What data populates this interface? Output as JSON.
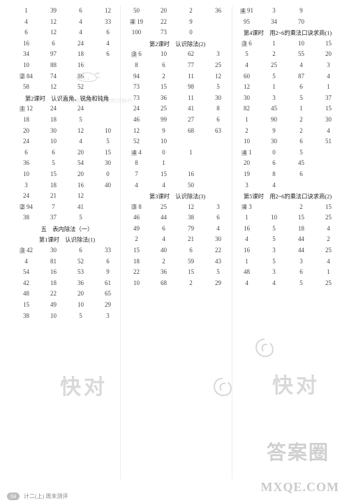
{
  "page_number": "84",
  "footer_text": "计二(上)  周末测评",
  "watermarks": {
    "kuaidui_small": "快对教材解析\n快对教材解析",
    "kuaidui_big": "快对",
    "answer": "答案圈",
    "url": "MXQE.COM"
  },
  "columns": [
    {
      "items": [
        {
          "t": "row",
          "c": [
            "1",
            "39",
            "6",
            "12"
          ]
        },
        {
          "t": "row",
          "c": [
            "4",
            "12",
            "4",
            "33"
          ]
        },
        {
          "t": "row",
          "c": [
            "6",
            "12",
            "4",
            "6"
          ]
        },
        {
          "t": "row",
          "c": [
            "16",
            "6",
            "24",
            "4"
          ]
        },
        {
          "t": "row",
          "c": [
            "34",
            "97",
            "18",
            "6"
          ]
        },
        {
          "t": "row",
          "c": [
            "10",
            "88",
            "16",
            ""
          ]
        },
        {
          "t": "row",
          "b": "2",
          "c": [
            "84",
            "74",
            "86",
            ""
          ]
        },
        {
          "t": "row",
          "c": [
            "58",
            "12",
            "52",
            ""
          ]
        },
        {
          "t": "hdr",
          "txt": "第2课时　认识直角、锐角和钝角"
        },
        {
          "t": "row",
          "b": "1",
          "c": [
            "12",
            "24",
            "24",
            ""
          ]
        },
        {
          "t": "row",
          "c": [
            "18",
            "18",
            "5",
            ""
          ]
        },
        {
          "t": "row",
          "c": [
            "20",
            "30",
            "12",
            "10"
          ]
        },
        {
          "t": "row",
          "c": [
            "24",
            "10",
            "4",
            "5"
          ]
        },
        {
          "t": "row",
          "c": [
            "6",
            "6",
            "20",
            "15"
          ]
        },
        {
          "t": "row",
          "c": [
            "36",
            "5",
            "54",
            "30"
          ]
        },
        {
          "t": "row",
          "c": [
            "10",
            "15",
            "20",
            "0"
          ]
        },
        {
          "t": "row",
          "c": [
            "3",
            "18",
            "16",
            "40"
          ]
        },
        {
          "t": "row",
          "c": [
            "24",
            "21",
            "12",
            ""
          ]
        },
        {
          "t": "row",
          "b": "2",
          "c": [
            "94",
            "7",
            "41",
            ""
          ]
        },
        {
          "t": "row",
          "c": [
            "38",
            "37",
            "5",
            ""
          ]
        },
        {
          "t": "hdr",
          "txt": "五　表内除法（一）"
        },
        {
          "t": "hdr",
          "txt": "第1课时　认识除法(1)"
        },
        {
          "t": "row",
          "b": "3",
          "c": [
            "42",
            "30",
            "6",
            "33"
          ]
        },
        {
          "t": "row",
          "c": [
            "4",
            "81",
            "52",
            "6"
          ]
        },
        {
          "t": "row",
          "c": [
            "54",
            "16",
            "53",
            "9"
          ]
        },
        {
          "t": "row",
          "c": [
            "42",
            "18",
            "36",
            "61"
          ]
        },
        {
          "t": "row",
          "c": [
            "48",
            "22",
            "20",
            "65"
          ]
        },
        {
          "t": "row",
          "c": [
            "15",
            "49",
            "10",
            "29"
          ]
        },
        {
          "t": "row",
          "c": [
            "38",
            "10",
            "5",
            "3"
          ]
        }
      ]
    },
    {
      "items": [
        {
          "t": "row",
          "c": [
            "50",
            "20",
            "2",
            "36"
          ]
        },
        {
          "t": "row",
          "b": "4",
          "c": [
            "19",
            "22",
            "9",
            ""
          ]
        },
        {
          "t": "row",
          "c": [
            "100",
            "73",
            "0",
            ""
          ]
        },
        {
          "t": "hdr",
          "txt": "第2课时　认识除法(2)"
        },
        {
          "t": "row",
          "b": "3",
          "c": [
            "6",
            "10",
            "62",
            "3"
          ]
        },
        {
          "t": "row",
          "c": [
            "8",
            "6",
            "77",
            "25"
          ]
        },
        {
          "t": "row",
          "c": [
            "94",
            "2",
            "11",
            "12"
          ]
        },
        {
          "t": "row",
          "c": [
            "73",
            "15",
            "98",
            "5"
          ]
        },
        {
          "t": "row",
          "c": [
            "73",
            "36",
            "11",
            "30"
          ]
        },
        {
          "t": "row",
          "c": [
            "24",
            "25",
            "41",
            "8"
          ]
        },
        {
          "t": "row",
          "c": [
            "46",
            "99",
            "27",
            "6"
          ]
        },
        {
          "t": "row",
          "c": [
            "12",
            "9",
            "68",
            "63"
          ]
        },
        {
          "t": "row",
          "c": [
            "52",
            "10",
            "",
            ""
          ]
        },
        {
          "t": "row",
          "b": "4",
          "c": [
            "4",
            "0",
            "1",
            ""
          ]
        },
        {
          "t": "row",
          "c": [
            "8",
            "1",
            "",
            ""
          ]
        },
        {
          "t": "row",
          "c": [
            "7",
            "15",
            "16",
            ""
          ]
        },
        {
          "t": "row",
          "c": [
            "4",
            "4",
            "50",
            ""
          ]
        },
        {
          "t": "hdr",
          "txt": "第3课时　认识除法(3)"
        },
        {
          "t": "row",
          "b": "3",
          "c": [
            "8",
            "25",
            "12",
            "3"
          ]
        },
        {
          "t": "row",
          "c": [
            "46",
            "44",
            "38",
            "6"
          ]
        },
        {
          "t": "row",
          "c": [
            "49",
            "6",
            "79",
            "4"
          ]
        },
        {
          "t": "row",
          "c": [
            "2",
            "4",
            "21",
            "30"
          ]
        },
        {
          "t": "row",
          "c": [
            "15",
            "40",
            "6",
            "22"
          ]
        },
        {
          "t": "row",
          "c": [
            "18",
            "2",
            "59",
            "43"
          ]
        },
        {
          "t": "row",
          "c": [
            "22",
            "36",
            "15",
            "5"
          ]
        },
        {
          "t": "row",
          "c": [
            "10",
            "68",
            "2",
            "29"
          ]
        }
      ]
    },
    {
      "items": [
        {
          "t": "row",
          "b": "4",
          "c": [
            "91",
            "3",
            "9",
            ""
          ]
        },
        {
          "t": "row",
          "c": [
            "95",
            "34",
            "70",
            ""
          ]
        },
        {
          "t": "hdr",
          "txt": "第4课时　用2~6的乘法口诀求商(1)"
        },
        {
          "t": "row",
          "b": "3",
          "c": [
            "6",
            "1",
            "10",
            "15"
          ]
        },
        {
          "t": "row",
          "c": [
            "5",
            "2",
            "55",
            "20"
          ]
        },
        {
          "t": "row",
          "c": [
            "4",
            "25",
            "4",
            "3"
          ]
        },
        {
          "t": "row",
          "c": [
            "60",
            "5",
            "87",
            "4"
          ]
        },
        {
          "t": "row",
          "c": [
            "12",
            "1",
            "6",
            "1"
          ]
        },
        {
          "t": "row",
          "c": [
            "30",
            "3",
            "5",
            "37"
          ]
        },
        {
          "t": "row",
          "c": [
            "82",
            "45",
            "1",
            "15"
          ]
        },
        {
          "t": "row",
          "c": [
            "1",
            "90",
            "2",
            "30"
          ]
        },
        {
          "t": "row",
          "c": [
            "2",
            "9",
            "2",
            "4"
          ]
        },
        {
          "t": "row",
          "c": [
            "10",
            "30",
            "6",
            "51"
          ]
        },
        {
          "t": "row",
          "b": "4",
          "c": [
            "1",
            "0",
            "5",
            ""
          ]
        },
        {
          "t": "row",
          "c": [
            "20",
            "6",
            "45",
            ""
          ]
        },
        {
          "t": "row",
          "c": [
            "19",
            "8",
            "6",
            ""
          ]
        },
        {
          "t": "row",
          "c": [
            "3",
            "4",
            "",
            ""
          ]
        },
        {
          "t": "hdr",
          "txt": "第5课时　用2~6的乘法口诀求商(2)"
        },
        {
          "t": "row",
          "b": "4",
          "c": [
            "3",
            "",
            "2",
            "15"
          ]
        },
        {
          "t": "row",
          "c": [
            "1",
            "10",
            "15",
            "25"
          ]
        },
        {
          "t": "row",
          "c": [
            "16",
            "5",
            "18",
            "4"
          ]
        },
        {
          "t": "row",
          "c": [
            "4",
            "5",
            "44",
            "2"
          ]
        },
        {
          "t": "row",
          "c": [
            "16",
            "3",
            "44",
            "25"
          ]
        },
        {
          "t": "row",
          "c": [
            "1",
            "5",
            "3",
            "4"
          ]
        },
        {
          "t": "row",
          "c": [
            "48",
            "3",
            "6",
            "1"
          ]
        },
        {
          "t": "row",
          "c": [
            "4",
            "4",
            "5",
            "25"
          ]
        }
      ]
    }
  ]
}
